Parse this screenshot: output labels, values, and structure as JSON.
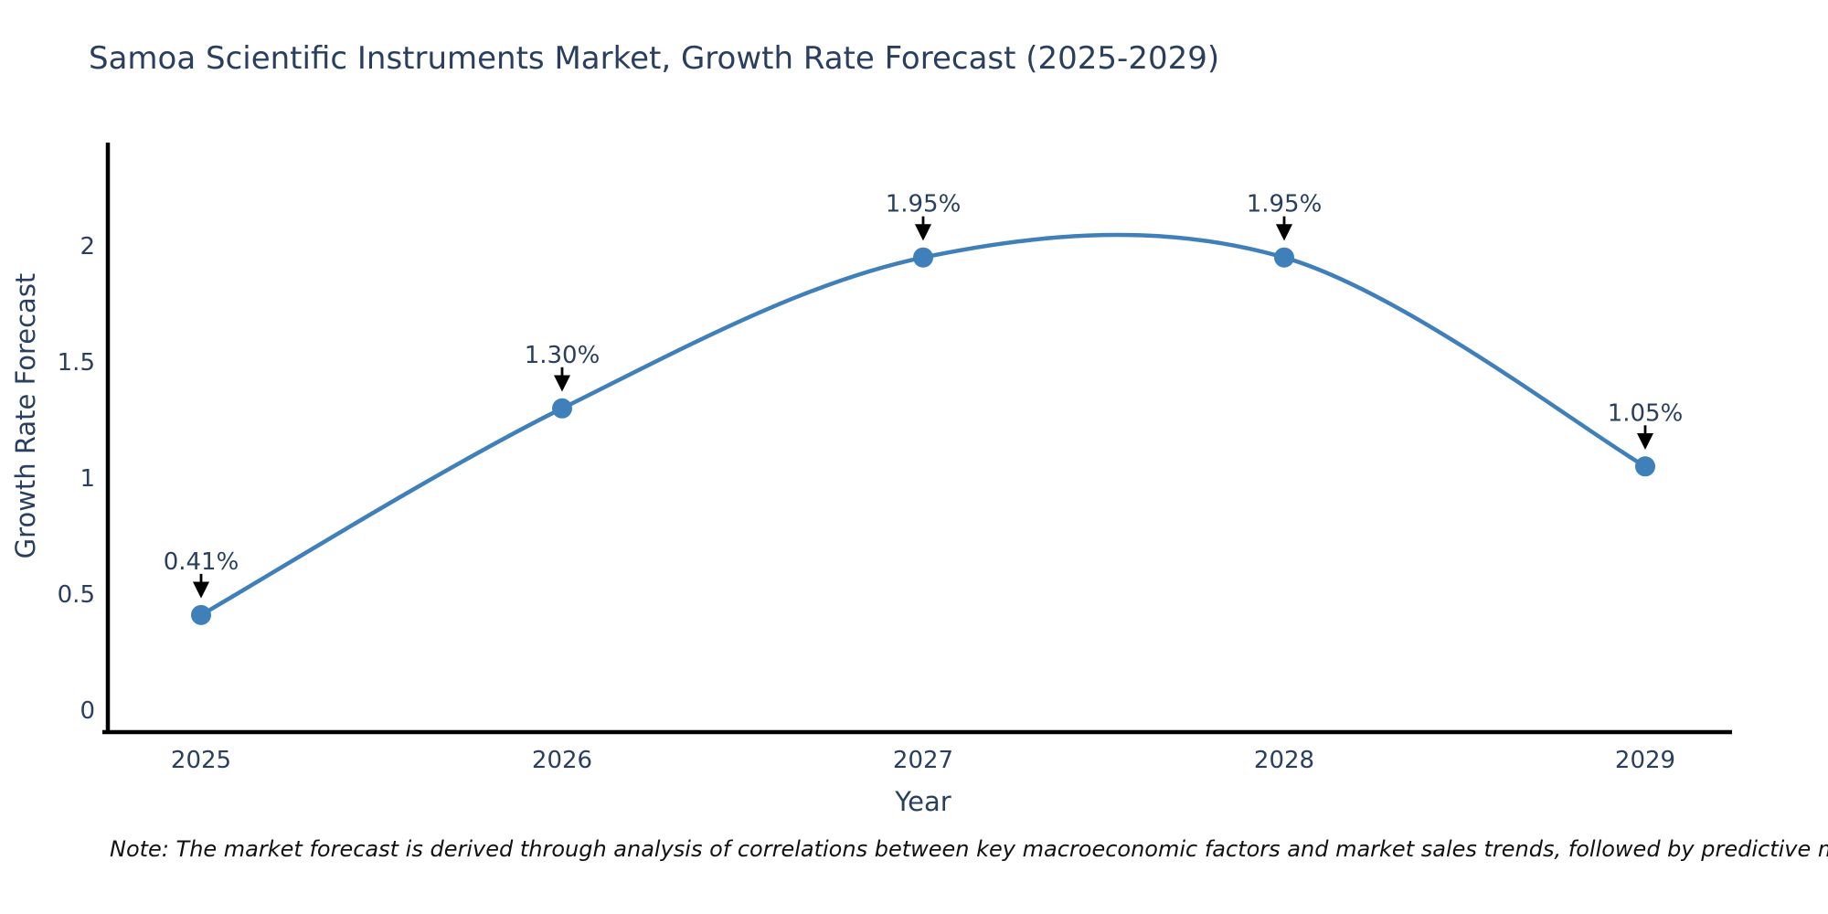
{
  "page": {
    "background": "#ffffff"
  },
  "chart_data": {
    "type": "line",
    "title": "Samoa Scientific Instruments Market, Growth Rate Forecast (2025-2029)",
    "xlabel": "Year",
    "ylabel": "Growth Rate Forecast",
    "categories": [
      "2025",
      "2026",
      "2027",
      "2028",
      "2029"
    ],
    "series": [
      {
        "name": "Growth Rate Forecast",
        "values": [
          0.41,
          1.3,
          1.95,
          1.95,
          1.05
        ]
      }
    ],
    "point_labels": [
      "0.41%",
      "1.30%",
      "1.95%",
      "1.95%",
      "1.05%"
    ],
    "x_tick_labels": [
      "2025",
      "2026",
      "2027",
      "2028",
      "2029"
    ],
    "y_tick_values": [
      0,
      0.5,
      1,
      1.5,
      2
    ],
    "y_tick_labels": [
      "0",
      "0.5",
      "1",
      "1.5",
      "2"
    ],
    "ylim": [
      -0.09,
      2.44
    ],
    "xlim": [
      2024.73,
      2029.25
    ],
    "grid": false,
    "legend_position": "none",
    "curve": "spline",
    "line_color": "#3f7fba",
    "marker_color": "#3f7fba",
    "annotation_arrow_color": "#000000",
    "axis_line_color": "#000000",
    "text_color": "#2a3f5f"
  },
  "note": {
    "text": "Note: The market forecast is derived through analysis of correlations between key macroeconomic factors and market sales trends, followed by predictive modeling to project future sales"
  }
}
